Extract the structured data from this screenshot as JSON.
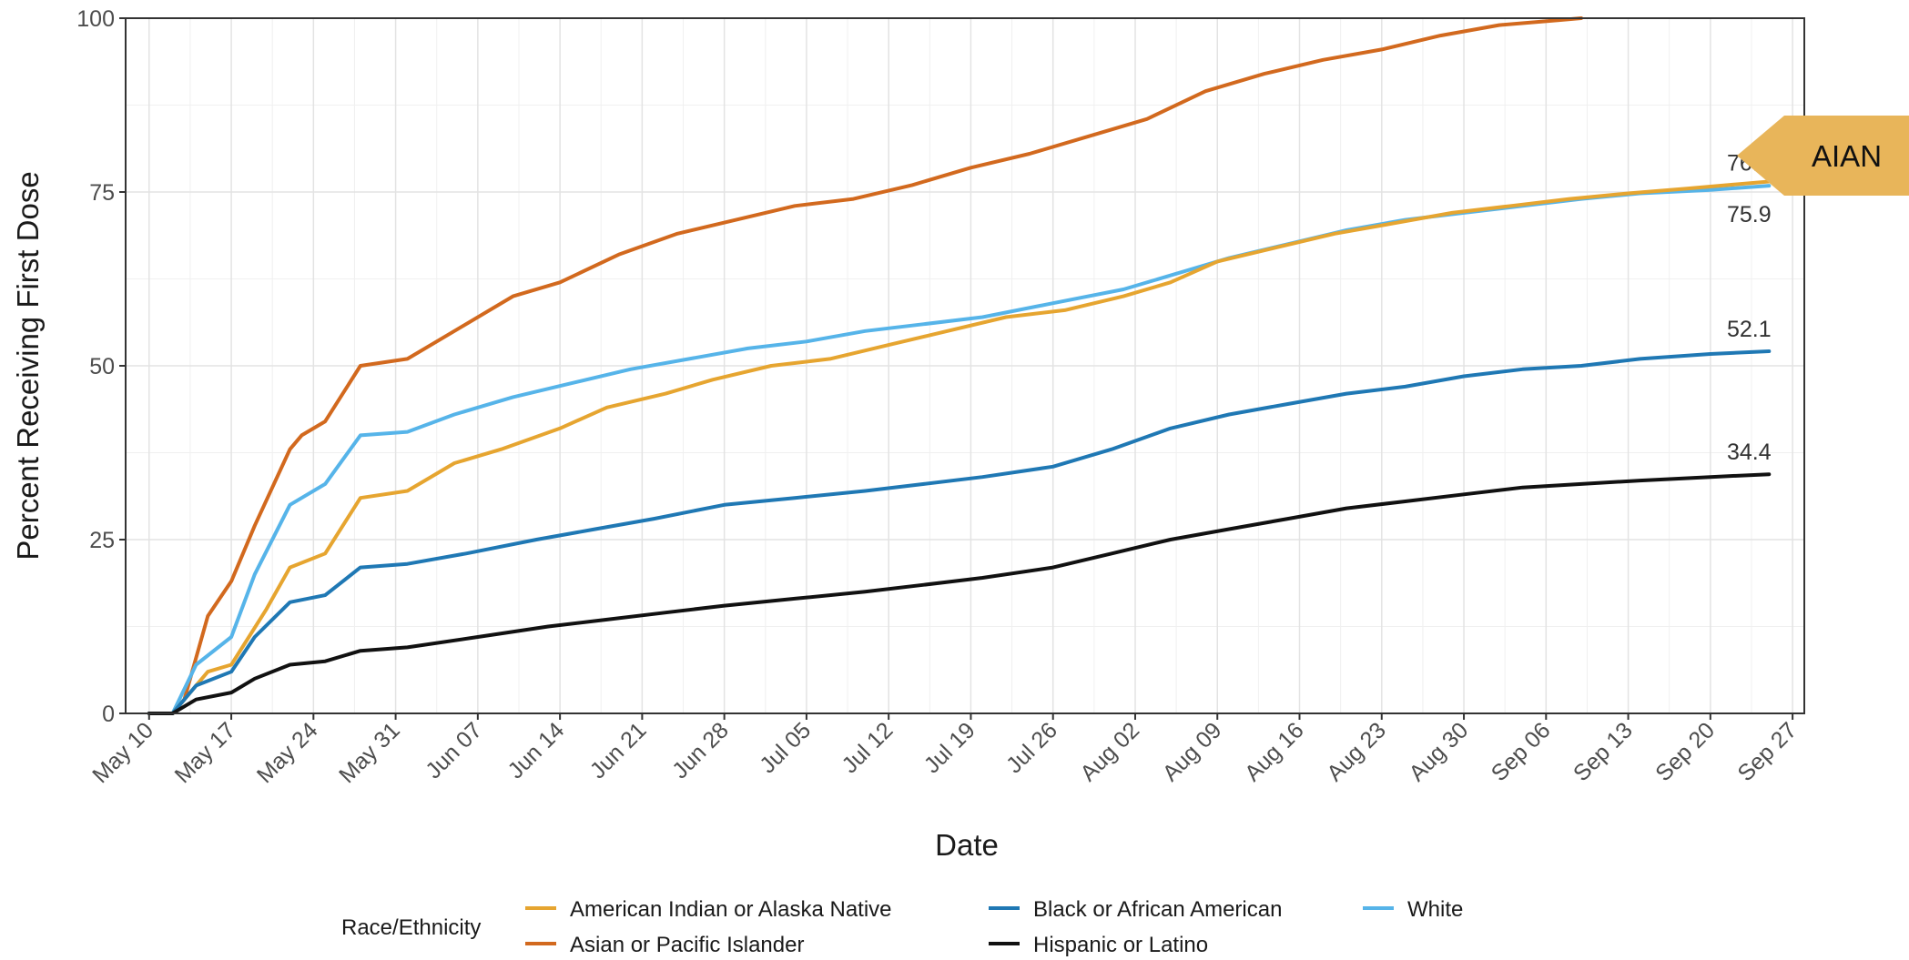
{
  "chart_data": {
    "type": "line",
    "xlabel": "Date",
    "ylabel": "Percent Receiving First Dose",
    "ylim": [
      0,
      100
    ],
    "yticks": [
      0,
      25,
      50,
      75,
      100
    ],
    "xlim": [
      "2021-05-08",
      "2021-09-28"
    ],
    "xticks": [
      "May 10",
      "May 17",
      "May 24",
      "May 31",
      "Jun 07",
      "Jun 14",
      "Jun 21",
      "Jun 28",
      "Jul 05",
      "Jul 12",
      "Jul 19",
      "Jul 26",
      "Aug 02",
      "Aug 09",
      "Aug 16",
      "Aug 23",
      "Aug 30",
      "Sep 06",
      "Sep 13",
      "Sep 20",
      "Sep 27"
    ],
    "grid": true,
    "legend": {
      "title": "Race/Ethnicity",
      "position": "bottom"
    },
    "series": [
      {
        "name": "American Indian or Alaska Native",
        "color": "#E6A530",
        "end_label": "76.5",
        "points": [
          [
            "2021-05-10",
            0
          ],
          [
            "2021-05-12",
            0
          ],
          [
            "2021-05-14",
            4
          ],
          [
            "2021-05-15",
            6
          ],
          [
            "2021-05-17",
            7
          ],
          [
            "2021-05-20",
            15
          ],
          [
            "2021-05-22",
            21
          ],
          [
            "2021-05-25",
            23
          ],
          [
            "2021-05-28",
            31
          ],
          [
            "2021-06-01",
            32
          ],
          [
            "2021-06-05",
            36
          ],
          [
            "2021-06-09",
            38
          ],
          [
            "2021-06-14",
            41
          ],
          [
            "2021-06-18",
            44
          ],
          [
            "2021-06-23",
            46
          ],
          [
            "2021-06-27",
            48
          ],
          [
            "2021-07-02",
            50
          ],
          [
            "2021-07-07",
            51
          ],
          [
            "2021-07-12",
            53
          ],
          [
            "2021-07-17",
            55
          ],
          [
            "2021-07-22",
            57
          ],
          [
            "2021-07-27",
            58
          ],
          [
            "2021-08-01",
            60
          ],
          [
            "2021-08-05",
            62
          ],
          [
            "2021-08-09",
            65
          ],
          [
            "2021-08-14",
            67
          ],
          [
            "2021-08-19",
            69
          ],
          [
            "2021-08-24",
            70.5
          ],
          [
            "2021-08-29",
            72
          ],
          [
            "2021-09-03",
            73
          ],
          [
            "2021-09-08",
            74
          ],
          [
            "2021-09-13",
            74.8
          ],
          [
            "2021-09-18",
            75.5
          ],
          [
            "2021-09-25",
            76.5
          ]
        ]
      },
      {
        "name": "Asian or Pacific Islander",
        "color": "#D2691E",
        "points": [
          [
            "2021-05-10",
            0
          ],
          [
            "2021-05-12",
            0
          ],
          [
            "2021-05-13",
            2
          ],
          [
            "2021-05-15",
            14
          ],
          [
            "2021-05-17",
            19
          ],
          [
            "2021-05-19",
            27
          ],
          [
            "2021-05-22",
            38
          ],
          [
            "2021-05-23",
            40
          ],
          [
            "2021-05-25",
            42
          ],
          [
            "2021-05-28",
            50
          ],
          [
            "2021-06-01",
            51
          ],
          [
            "2021-06-05",
            55
          ],
          [
            "2021-06-10",
            60
          ],
          [
            "2021-06-14",
            62
          ],
          [
            "2021-06-19",
            66
          ],
          [
            "2021-06-24",
            69
          ],
          [
            "2021-06-29",
            71
          ],
          [
            "2021-07-04",
            73
          ],
          [
            "2021-07-09",
            74
          ],
          [
            "2021-07-14",
            76
          ],
          [
            "2021-07-19",
            78.5
          ],
          [
            "2021-07-24",
            80.5
          ],
          [
            "2021-07-29",
            83
          ],
          [
            "2021-08-03",
            85.5
          ],
          [
            "2021-08-08",
            89.5
          ],
          [
            "2021-08-13",
            92
          ],
          [
            "2021-08-18",
            94
          ],
          [
            "2021-08-23",
            95.5
          ],
          [
            "2021-08-28",
            97.5
          ],
          [
            "2021-09-02",
            99
          ],
          [
            "2021-09-07",
            99.7
          ],
          [
            "2021-09-09",
            100
          ]
        ]
      },
      {
        "name": "Black or African American",
        "color": "#1F78B4",
        "end_label": "52.1",
        "points": [
          [
            "2021-05-10",
            0
          ],
          [
            "2021-05-12",
            0
          ],
          [
            "2021-05-14",
            4
          ],
          [
            "2021-05-17",
            6
          ],
          [
            "2021-05-19",
            11
          ],
          [
            "2021-05-22",
            16
          ],
          [
            "2021-05-25",
            17
          ],
          [
            "2021-05-28",
            21
          ],
          [
            "2021-06-01",
            21.5
          ],
          [
            "2021-06-06",
            23
          ],
          [
            "2021-06-12",
            25
          ],
          [
            "2021-06-17",
            26.5
          ],
          [
            "2021-06-22",
            28
          ],
          [
            "2021-06-28",
            30
          ],
          [
            "2021-07-04",
            31
          ],
          [
            "2021-07-10",
            32
          ],
          [
            "2021-07-15",
            33
          ],
          [
            "2021-07-20",
            34
          ],
          [
            "2021-07-26",
            35.5
          ],
          [
            "2021-07-31",
            38
          ],
          [
            "2021-08-05",
            41
          ],
          [
            "2021-08-10",
            43
          ],
          [
            "2021-08-15",
            44.5
          ],
          [
            "2021-08-20",
            46
          ],
          [
            "2021-08-25",
            47
          ],
          [
            "2021-08-30",
            48.5
          ],
          [
            "2021-09-04",
            49.5
          ],
          [
            "2021-09-09",
            50
          ],
          [
            "2021-09-14",
            51
          ],
          [
            "2021-09-20",
            51.7
          ],
          [
            "2021-09-25",
            52.1
          ]
        ]
      },
      {
        "name": "White",
        "color": "#56B4E9",
        "end_label": "75.9",
        "points": [
          [
            "2021-05-10",
            0
          ],
          [
            "2021-05-12",
            0
          ],
          [
            "2021-05-14",
            7
          ],
          [
            "2021-05-17",
            11
          ],
          [
            "2021-05-19",
            20
          ],
          [
            "2021-05-22",
            30
          ],
          [
            "2021-05-25",
            33
          ],
          [
            "2021-05-28",
            40
          ],
          [
            "2021-06-01",
            40.5
          ],
          [
            "2021-06-05",
            43
          ],
          [
            "2021-06-10",
            45.5
          ],
          [
            "2021-06-15",
            47.5
          ],
          [
            "2021-06-20",
            49.5
          ],
          [
            "2021-06-25",
            51
          ],
          [
            "2021-06-30",
            52.5
          ],
          [
            "2021-07-05",
            53.5
          ],
          [
            "2021-07-10",
            55
          ],
          [
            "2021-07-15",
            56
          ],
          [
            "2021-07-20",
            57
          ],
          [
            "2021-07-26",
            59
          ],
          [
            "2021-08-01",
            61
          ],
          [
            "2021-08-05",
            63
          ],
          [
            "2021-08-10",
            65.5
          ],
          [
            "2021-08-15",
            67.5
          ],
          [
            "2021-08-20",
            69.5
          ],
          [
            "2021-08-25",
            71
          ],
          [
            "2021-08-30",
            72
          ],
          [
            "2021-09-04",
            73
          ],
          [
            "2021-09-09",
            74
          ],
          [
            "2021-09-14",
            74.8
          ],
          [
            "2021-09-20",
            75.3
          ],
          [
            "2021-09-25",
            75.9
          ]
        ]
      },
      {
        "name": "Hispanic or Latino",
        "color": "#111111",
        "end_label": "34.4",
        "points": [
          [
            "2021-05-10",
            0
          ],
          [
            "2021-05-12",
            0
          ],
          [
            "2021-05-14",
            2
          ],
          [
            "2021-05-17",
            3
          ],
          [
            "2021-05-19",
            5
          ],
          [
            "2021-05-22",
            7
          ],
          [
            "2021-05-25",
            7.5
          ],
          [
            "2021-05-28",
            9
          ],
          [
            "2021-06-01",
            9.5
          ],
          [
            "2021-06-07",
            11
          ],
          [
            "2021-06-13",
            12.5
          ],
          [
            "2021-06-18",
            13.5
          ],
          [
            "2021-06-23",
            14.5
          ],
          [
            "2021-06-28",
            15.5
          ],
          [
            "2021-07-04",
            16.5
          ],
          [
            "2021-07-10",
            17.5
          ],
          [
            "2021-07-15",
            18.5
          ],
          [
            "2021-07-20",
            19.5
          ],
          [
            "2021-07-26",
            21
          ],
          [
            "2021-07-31",
            23
          ],
          [
            "2021-08-05",
            25
          ],
          [
            "2021-08-10",
            26.5
          ],
          [
            "2021-08-15",
            28
          ],
          [
            "2021-08-20",
            29.5
          ],
          [
            "2021-08-25",
            30.5
          ],
          [
            "2021-08-30",
            31.5
          ],
          [
            "2021-09-04",
            32.5
          ],
          [
            "2021-09-09",
            33
          ],
          [
            "2021-09-14",
            33.5
          ],
          [
            "2021-09-20",
            34
          ],
          [
            "2021-09-25",
            34.4
          ]
        ]
      }
    ],
    "annotation": {
      "text": "AIAN",
      "color": "#E8B55A"
    }
  }
}
